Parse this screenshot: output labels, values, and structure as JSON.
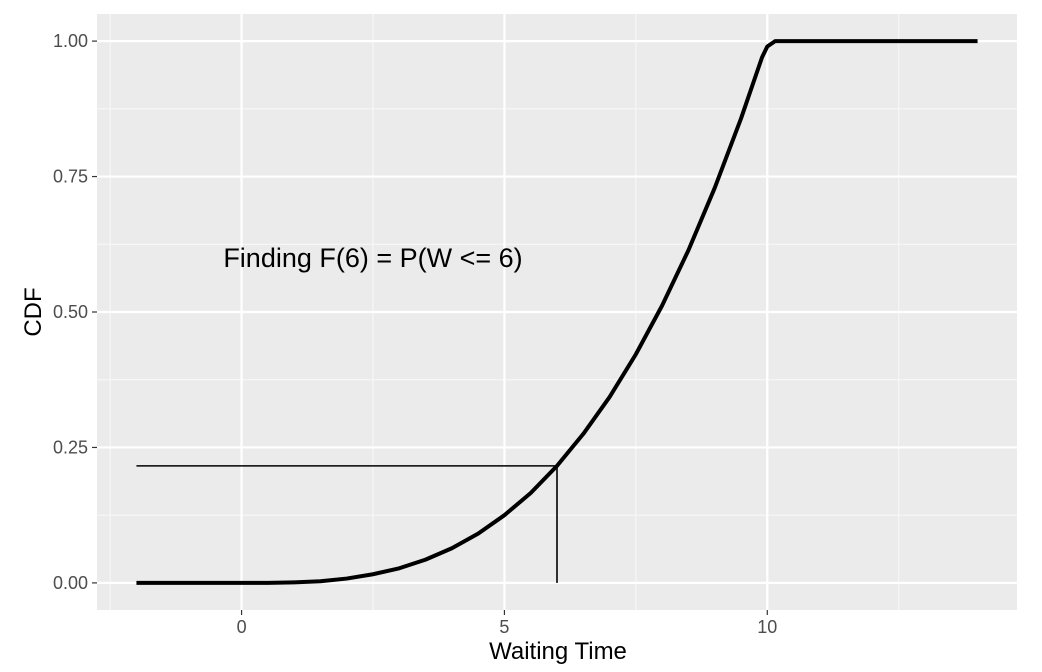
{
  "chart_data": {
    "type": "line",
    "title": "",
    "xlabel": "Waiting Time",
    "ylabel": "CDF",
    "xlim": [
      -2.75,
      14.75
    ],
    "ylim": [
      -0.05,
      1.05
    ],
    "x_ticks": [
      0,
      5,
      10
    ],
    "x_tick_labels": [
      "0",
      "5",
      "10"
    ],
    "y_ticks": [
      0,
      0.25,
      0.5,
      0.75,
      1
    ],
    "y_tick_labels": [
      "0.00",
      "0.25",
      "0.50",
      "0.75",
      "1.00"
    ],
    "grid": true,
    "legend": "none",
    "series": [
      {
        "x": [
          -2,
          -1,
          0,
          0.5,
          1,
          1.5,
          2,
          2.5,
          3,
          3.5,
          4,
          4.5,
          5,
          5.5,
          6,
          6.5,
          7,
          7.5,
          8,
          8.5,
          9,
          9.5,
          9.9,
          10,
          10.15,
          12,
          14
        ],
        "y": [
          0,
          0,
          0,
          0,
          0.001,
          0.003,
          0.008,
          0.016,
          0.027,
          0.043,
          0.064,
          0.091,
          0.125,
          0.166,
          0.216,
          0.275,
          0.343,
          0.422,
          0.512,
          0.614,
          0.729,
          0.857,
          0.97,
          0.99,
          1,
          1,
          1
        ]
      }
    ],
    "annotations": [
      {
        "text": "Finding F(6) = P(W <= 6)",
        "x": 2.5,
        "y": 0.6
      }
    ],
    "reference_lines": {
      "x_start": -2,
      "x": 6,
      "y": 0.216
    }
  }
}
